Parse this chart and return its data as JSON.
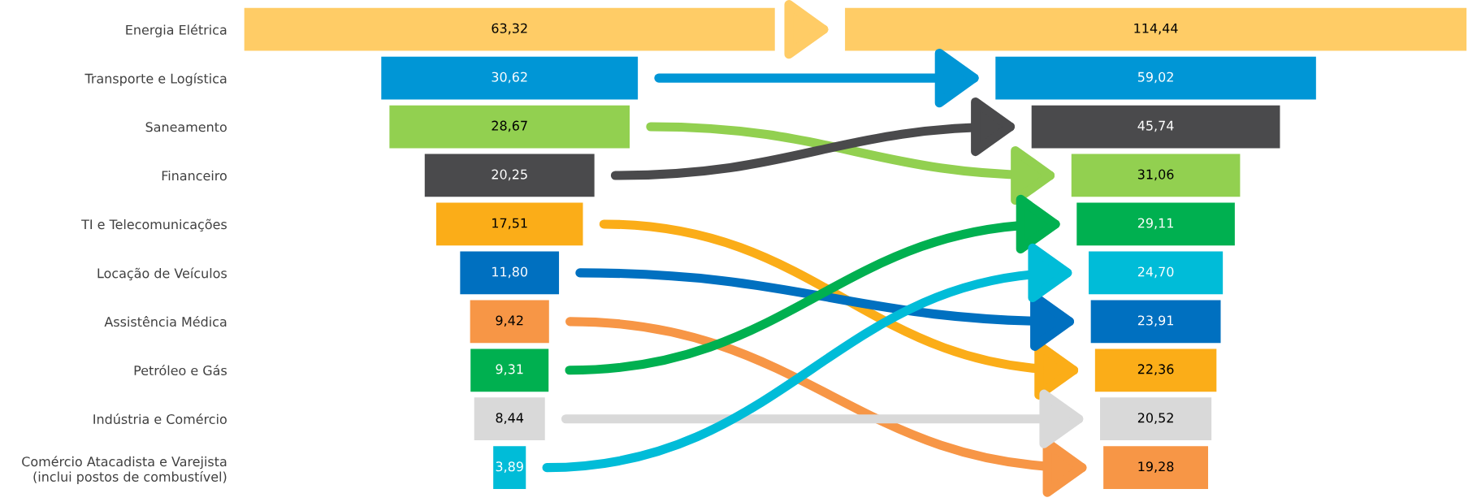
{
  "chart_data": [
    {
      "type": "other",
      "categories": [
        "Energia Elétrica",
        "Transporte e Logística",
        "Saneamento",
        "Financeiro",
        "TI e Telecomunicações",
        "Locação de Veículos",
        "Assistência Médica",
        "Petróleo e Gás",
        "Indústria e Comércio",
        "Comércio Atacadista e Varejista\n(inclui postos de combustível)"
      ],
      "values": [
        63.32,
        30.62,
        28.67,
        20.25,
        17.51,
        11.8,
        9.42,
        9.31,
        8.44,
        3.89
      ],
      "value_labels": [
        "63,32",
        "30,62",
        "28,67",
        "20,25",
        "17,51",
        "11,80",
        "9,42",
        "9,31",
        "8,44",
        "3,89"
      ],
      "colors": [
        "#ffcc66",
        "#0096d6",
        "#92d050",
        "#4a4a4c",
        "#fbad18",
        "#0070c0",
        "#f79646",
        "#00b050",
        "#d9d9d9",
        "#00bcd8"
      ]
    },
    {
      "type": "other",
      "categories": [
        null,
        null,
        null,
        null,
        null,
        null,
        null,
        null,
        null,
        null
      ],
      "values": [
        114.44,
        59.02,
        45.74,
        31.06,
        29.11,
        24.7,
        23.91,
        22.36,
        20.52,
        19.28
      ],
      "value_labels": [
        "114,44",
        "59,02",
        "45,74",
        "31,06",
        "29,11",
        "24,70",
        "23,91",
        "22,36",
        "20,52",
        "19,28"
      ],
      "colors": [
        "#ffcc66",
        "#0096d6",
        "#4a4a4c",
        "#92d050",
        "#00b050",
        "#00bcd8",
        "#0070c0",
        "#fbad18",
        "#d9d9d9",
        "#f79646"
      ]
    }
  ]
}
